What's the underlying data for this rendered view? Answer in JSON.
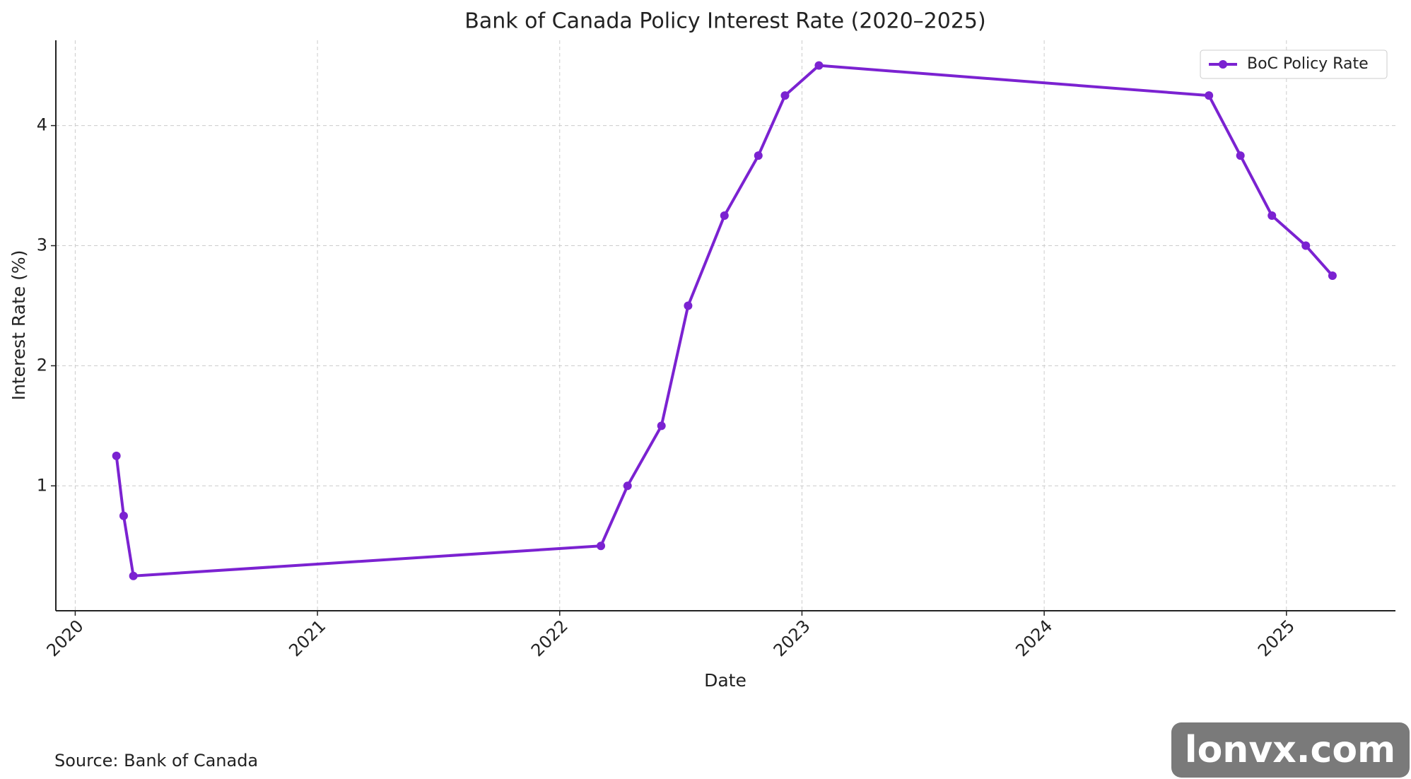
{
  "chart_data": {
    "type": "line",
    "title": "Bank of Canada Policy Interest Rate (2020–2025)",
    "x_label": "Date",
    "y_label": "Interest Rate (%)",
    "x": [
      2020.17,
      2020.2,
      2020.24,
      2022.17,
      2022.28,
      2022.42,
      2022.53,
      2022.68,
      2022.82,
      2022.93,
      2023.07,
      2024.68,
      2024.81,
      2024.94,
      2025.08,
      2025.19
    ],
    "series": [
      {
        "name": "BoC Policy Rate",
        "color": "#7b22d1",
        "values": [
          1.25,
          0.75,
          0.25,
          0.5,
          1.0,
          1.5,
          2.5,
          3.25,
          3.75,
          4.25,
          4.5,
          4.25,
          3.75,
          3.25,
          3.0,
          2.75
        ]
      }
    ],
    "xlim": [
      2019.92,
      2025.45
    ],
    "xticks": [
      2020,
      2021,
      2022,
      2023,
      2024,
      2025
    ],
    "ylim": [
      -0.04,
      4.71
    ],
    "yticks": [
      1,
      2,
      3,
      4
    ],
    "grid": true,
    "legend": "upper right",
    "source": "Source: Bank of Canada",
    "watermark": "lonvx.com"
  }
}
